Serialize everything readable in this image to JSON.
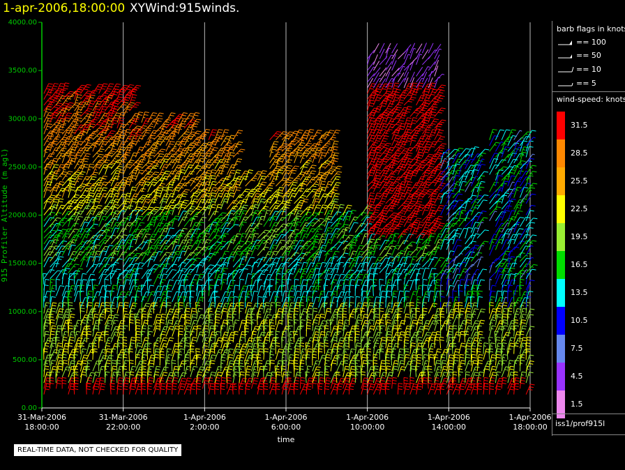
{
  "header": {
    "datetime": "1-apr-2006,18:00:00",
    "title": "XYWind:915winds."
  },
  "colors": {
    "y_axis": "#00cc00",
    "datetime": "#ffff00",
    "grid": "#bbbbbb"
  },
  "chart_data": {
    "type": "wind-barb profile",
    "ylabel": "915 Profiler Altitude (m agl)",
    "xlabel": "time",
    "ylim": [
      0,
      4000
    ],
    "yticks": [
      "0.00",
      "500.00",
      "1000.00",
      "1500.00",
      "2000.00",
      "2500.00",
      "3000.00",
      "3500.00",
      "4000.00"
    ],
    "ytick_values": [
      0,
      500,
      1000,
      1500,
      2000,
      2500,
      3000,
      3500,
      4000
    ],
    "xlim_hours": [
      0,
      24
    ],
    "xticks": [
      {
        "hour": 0,
        "date": "31-Mar-2006",
        "time": "18:00:00"
      },
      {
        "hour": 4,
        "date": "31-Mar-2006",
        "time": "22:00:00"
      },
      {
        "hour": 8,
        "date": "1-Apr-2006",
        "time": "2:00:00"
      },
      {
        "hour": 12,
        "date": "1-Apr-2006",
        "time": "6:00:00"
      },
      {
        "hour": 16,
        "date": "1-Apr-2006",
        "time": "10:00:00"
      },
      {
        "hour": 20,
        "date": "1-Apr-2006",
        "time": "14:00:00"
      },
      {
        "hour": 24,
        "date": "1-Apr-2006",
        "time": "18:00:00"
      }
    ],
    "profile_columns_hours": [
      0.1,
      0.4,
      0.7,
      1.0,
      1.3,
      1.6,
      1.9,
      2.2,
      2.5,
      2.8,
      3.1,
      3.4,
      3.7,
      4.0,
      4.3,
      4.6,
      4.9,
      5.2,
      5.5,
      5.8,
      6.1,
      6.4,
      6.7,
      7.0,
      7.3,
      7.6,
      7.9,
      8.2,
      8.5,
      8.8,
      9.1,
      9.4,
      9.7,
      10.0,
      10.3,
      10.6,
      10.9,
      11.2,
      11.5,
      11.8,
      12.1,
      12.4,
      12.7,
      13.0,
      13.3,
      13.6,
      13.9,
      14.2,
      14.5,
      14.8,
      15.1,
      15.4,
      15.7,
      16.0,
      16.3,
      16.6,
      16.9,
      17.2,
      17.5,
      17.8,
      18.1,
      18.4,
      18.7,
      19.0,
      19.3,
      19.6,
      19.9,
      20.2,
      20.5,
      20.8,
      21.1,
      21.4,
      21.7,
      22.0,
      22.3,
      22.6,
      22.9,
      23.2,
      23.5,
      23.8
    ],
    "level_spacing_m": 60,
    "speed_bins_knots": [
      1.5,
      4.5,
      7.5,
      10.5,
      13.5,
      16.5,
      19.5,
      22.5,
      25.5,
      28.5,
      31.5
    ]
  },
  "legend": {
    "barb_title": "barb flags in knots",
    "barb_items": [
      "== 100",
      "== 50",
      "== 10",
      "== 5"
    ],
    "speed_title": "wind-speed: knots",
    "speed_scale": [
      {
        "label": "31.5",
        "color": "#ff0000"
      },
      {
        "label": "28.5",
        "color": "#ff8800"
      },
      {
        "label": "25.5",
        "color": "#ffaa00"
      },
      {
        "label": "22.5",
        "color": "#ffff00"
      },
      {
        "label": "19.5",
        "color": "#99ee33"
      },
      {
        "label": "16.5",
        "color": "#00dd00"
      },
      {
        "label": "13.5",
        "color": "#00ffff"
      },
      {
        "label": "10.5",
        "color": "#0000ff"
      },
      {
        "label": "7.5",
        "color": "#6688ee"
      },
      {
        "label": "4.5",
        "color": "#9933ff"
      },
      {
        "label": "1.5",
        "color": "#ee88ee"
      }
    ],
    "station": "iss1/prof915l"
  },
  "notice": "REAL-TIME DATA, NOT CHECKED FOR QUALITY"
}
